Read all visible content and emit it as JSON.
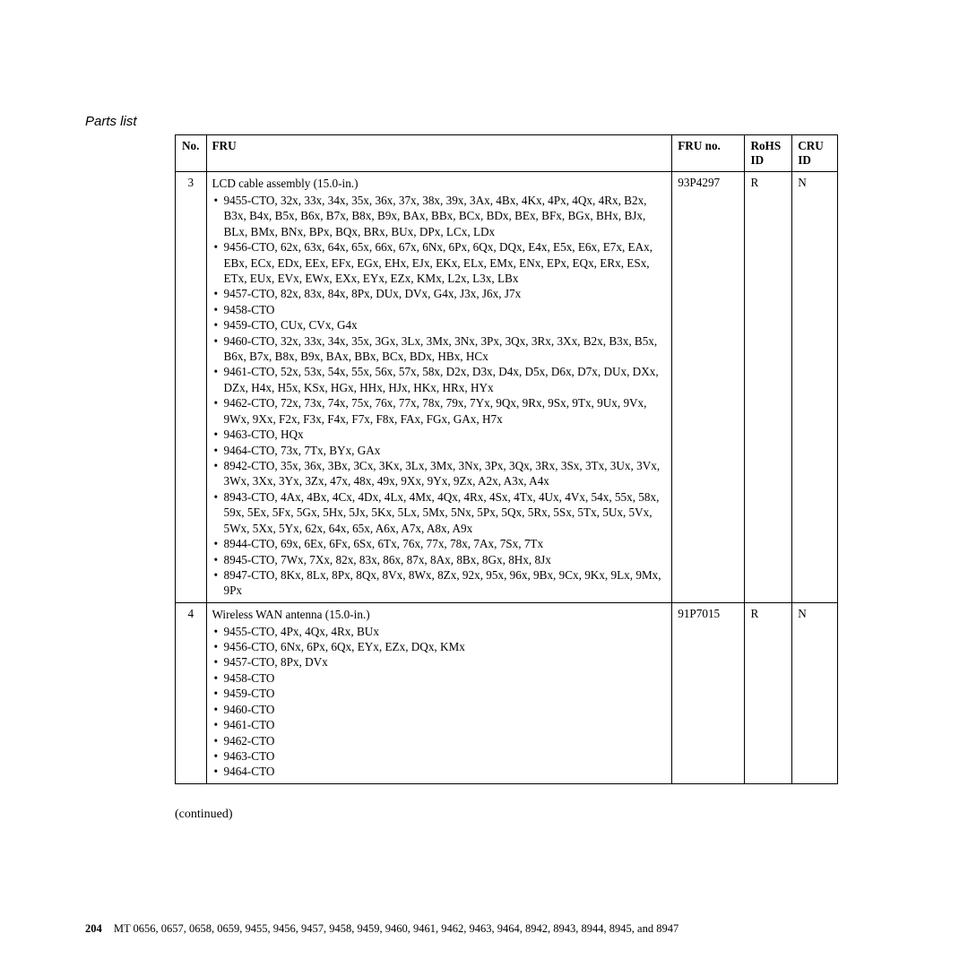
{
  "section_label": "Parts list",
  "columns": {
    "no": "No.",
    "fru": "FRU",
    "fruno": "FRU no.",
    "rohs": "RoHS ID",
    "cru": "CRU ID"
  },
  "rows": [
    {
      "no": "3",
      "title": "LCD cable assembly (15.0-in.)",
      "items": [
        "9455-CTO, 32x, 33x, 34x, 35x, 36x, 37x, 38x, 39x, 3Ax, 4Bx, 4Kx, 4Px, 4Qx, 4Rx, B2x, B3x, B4x, B5x, B6x, B7x, B8x, B9x, BAx, BBx, BCx, BDx, BEx, BFx, BGx, BHx, BJx, BLx, BMx, BNx, BPx, BQx, BRx, BUx, DPx, LCx, LDx",
        "9456-CTO, 62x, 63x, 64x, 65x, 66x, 67x, 6Nx, 6Px, 6Qx, DQx, E4x, E5x, E6x, E7x, EAx, EBx, ECx, EDx, EEx, EFx, EGx, EHx, EJx, EKx, ELx, EMx, ENx, EPx, EQx, ERx, ESx, ETx, EUx, EVx, EWx, EXx, EYx, EZx, KMx, L2x, L3x, LBx",
        "9457-CTO, 82x, 83x, 84x, 8Px, DUx, DVx, G4x, J3x, J6x, J7x",
        "9458-CTO",
        "9459-CTO, CUx, CVx, G4x",
        "9460-CTO, 32x, 33x, 34x, 35x, 3Gx, 3Lx, 3Mx, 3Nx, 3Px, 3Qx, 3Rx, 3Xx, B2x, B3x, B5x, B6x, B7x, B8x, B9x, BAx, BBx, BCx, BDx, HBx, HCx",
        "9461-CTO, 52x, 53x, 54x, 55x, 56x, 57x, 58x, D2x, D3x, D4x, D5x, D6x, D7x, DUx, DXx, DZx, H4x, H5x, KSx, HGx, HHx, HJx, HKx, HRx, HYx",
        "9462-CTO, 72x, 73x, 74x, 75x, 76x, 77x, 78x, 79x, 7Yx, 9Qx, 9Rx, 9Sx, 9Tx, 9Ux, 9Vx, 9Wx, 9Xx, F2x, F3x, F4x, F7x, F8x, FAx, FGx, GAx, H7x",
        "9463-CTO, HQx",
        "9464-CTO, 73x, 7Tx, BYx, GAx",
        "8942-CTO, 35x, 36x, 3Bx, 3Cx, 3Kx, 3Lx, 3Mx, 3Nx, 3Px, 3Qx, 3Rx, 3Sx, 3Tx, 3Ux, 3Vx, 3Wx, 3Xx, 3Yx, 3Zx, 47x, 48x, 49x, 9Xx, 9Yx, 9Zx, A2x, A3x, A4x",
        "8943-CTO, 4Ax, 4Bx, 4Cx, 4Dx, 4Lx, 4Mx, 4Qx, 4Rx, 4Sx, 4Tx, 4Ux, 4Vx, 54x, 55x, 58x, 59x, 5Ex, 5Fx, 5Gx, 5Hx, 5Jx, 5Kx, 5Lx, 5Mx, 5Nx, 5Px, 5Qx, 5Rx, 5Sx, 5Tx, 5Ux, 5Vx, 5Wx, 5Xx, 5Yx, 62x, 64x, 65x, A6x, A7x, A8x, A9x",
        "8944-CTO, 69x, 6Ex, 6Fx, 6Sx, 6Tx, 76x, 77x, 78x, 7Ax, 7Sx, 7Tx",
        "8945-CTO, 7Wx, 7Xx, 82x, 83x, 86x, 87x, 8Ax, 8Bx, 8Gx, 8Hx, 8Jx",
        "8947-CTO, 8Kx, 8Lx, 8Px, 8Qx, 8Vx, 8Wx, 8Zx, 92x, 95x, 96x, 9Bx, 9Cx, 9Kx, 9Lx, 9Mx, 9Px"
      ],
      "fruno": "93P4297",
      "rohs": "R",
      "cru": "N"
    },
    {
      "no": "4",
      "title": "Wireless WAN antenna (15.0-in.)",
      "items": [
        "9455-CTO, 4Px, 4Qx, 4Rx, BUx",
        "9456-CTO, 6Nx, 6Px, 6Qx, EYx, EZx, DQx, KMx",
        "9457-CTO, 8Px, DVx",
        "9458-CTO",
        "9459-CTO",
        "9460-CTO",
        "9461-CTO",
        "9462-CTO",
        "9463-CTO",
        "9464-CTO"
      ],
      "fruno": "91P7015",
      "rohs": "R",
      "cru": "N"
    }
  ],
  "continued": "(continued)",
  "footer": {
    "page": "204",
    "text": "MT 0656, 0657, 0658, 0659, 9455, 9456, 9457, 9458, 9459, 9460, 9461, 9462, 9463, 9464, 8942, 8943, 8944, 8945, and 8947"
  }
}
